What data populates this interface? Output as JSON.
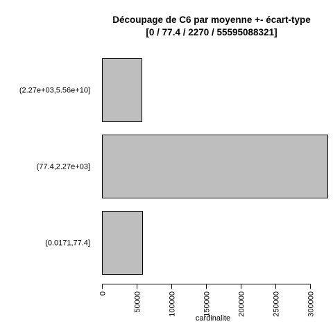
{
  "chart_data": {
    "type": "bar",
    "orientation": "horizontal",
    "title": "Découpage de C6 par moyenne +- écart-type",
    "subtitle": "[0 / 77.4 / 2270 / 55595088321]",
    "xlabel": "cardinalite",
    "ylabel": "",
    "categories": [
      "(0.0171,77.4]",
      "(77.4,2.27e+03]",
      "(2.27e+03,5.56e+10]"
    ],
    "values": [
      58000,
      325000,
      57000
    ],
    "xlim": [
      0,
      325000
    ],
    "x_ticks": [
      0,
      50000,
      100000,
      150000,
      200000,
      250000,
      300000
    ],
    "x_tick_labels": [
      "0",
      "50000",
      "100000",
      "150000",
      "200000",
      "250000",
      "300000"
    ],
    "bar_color": "#bebebe",
    "bar_edge_color": "#000000",
    "grid": false,
    "legend": "none"
  }
}
